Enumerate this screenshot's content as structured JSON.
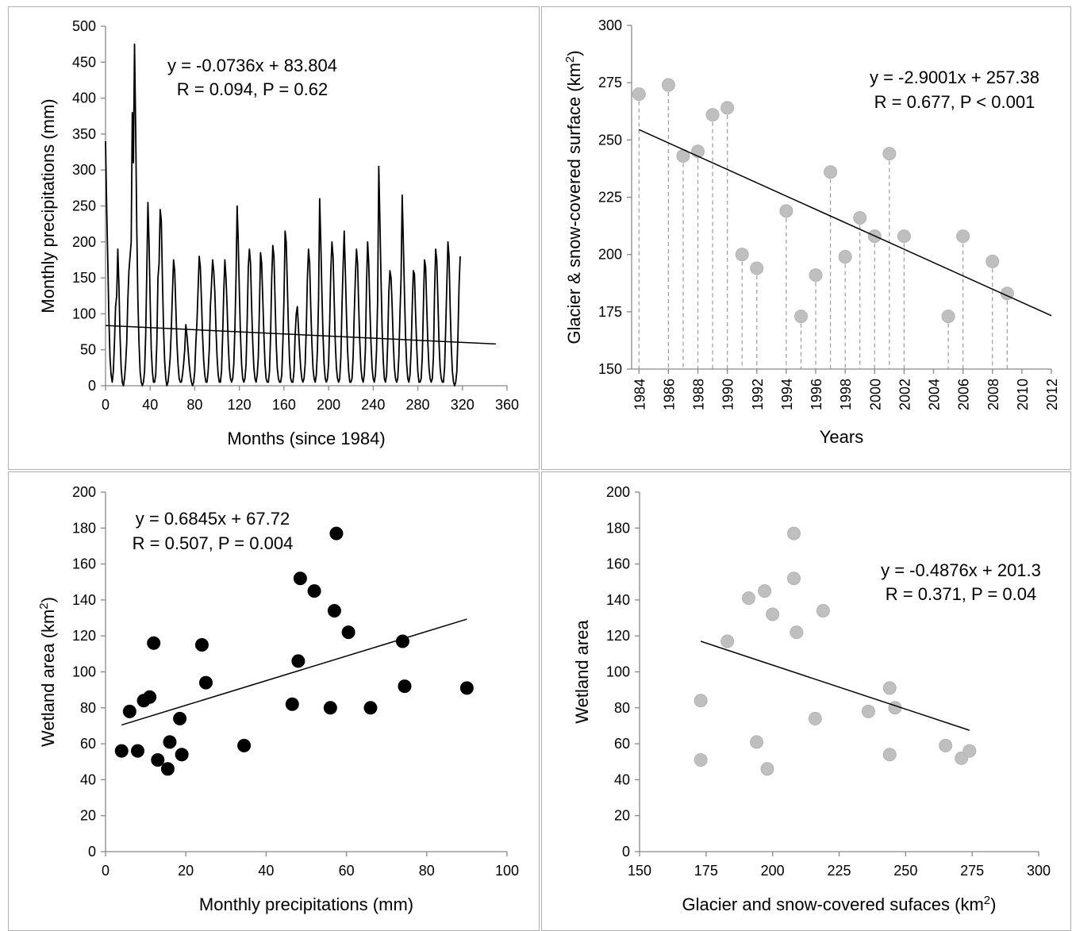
{
  "chart_data": [
    {
      "type": "line",
      "xlabel": "Months (since 1984)",
      "ylabel": "Monthly precipitations (mm)",
      "xlim": [
        0,
        360
      ],
      "ylim": [
        0,
        500
      ],
      "xticks": [
        "0",
        "40",
        "80",
        "120",
        "160",
        "200",
        "240",
        "280",
        "320",
        "360"
      ],
      "yticks": [
        "0",
        "50",
        "100",
        "150",
        "200",
        "250",
        "300",
        "350",
        "400",
        "450",
        "500"
      ],
      "annotation": [
        "y = -0.0736x + 83.804",
        "R = 0.094, P = 0.62"
      ],
      "trendline": {
        "slope": -0.0736,
        "intercept": 83.804,
        "x_range": [
          0,
          350
        ]
      },
      "color": "#000000",
      "series": [
        {
          "values": [
            340,
            250,
            175,
            95,
            40,
            15,
            5,
            20,
            60,
            110,
            125,
            190,
            140,
            70,
            25,
            5,
            0,
            10,
            30,
            60,
            120,
            160,
            180,
            200,
            380,
            310,
            475,
            360,
            220,
            120,
            60,
            20,
            5,
            0,
            5,
            20,
            70,
            160,
            255,
            200,
            120,
            50,
            20,
            5,
            5,
            15,
            60,
            150,
            170,
            245,
            230,
            150,
            80,
            35,
            10,
            0,
            5,
            20,
            40,
            80,
            130,
            175,
            160,
            110,
            60,
            30,
            10,
            5,
            5,
            15,
            30,
            50,
            85,
            70,
            50,
            30,
            15,
            5,
            0,
            5,
            20,
            60,
            90,
            135,
            180,
            165,
            120,
            70,
            35,
            15,
            5,
            5,
            20,
            50,
            110,
            140,
            175,
            160,
            130,
            80,
            40,
            15,
            5,
            5,
            20,
            70,
            130,
            175,
            150,
            110,
            60,
            25,
            10,
            5,
            10,
            30,
            80,
            150,
            250,
            200,
            130,
            70,
            30,
            10,
            5,
            10,
            30,
            90,
            165,
            190,
            170,
            110,
            60,
            25,
            10,
            5,
            15,
            40,
            110,
            185,
            170,
            120,
            70,
            30,
            10,
            5,
            5,
            20,
            70,
            150,
            195,
            180,
            120,
            60,
            25,
            10,
            5,
            5,
            15,
            60,
            120,
            215,
            200,
            140,
            80,
            35,
            10,
            5,
            5,
            20,
            70,
            100,
            110,
            80,
            50,
            25,
            10,
            5,
            10,
            30,
            80,
            150,
            190,
            170,
            110,
            60,
            25,
            10,
            5,
            15,
            50,
            120,
            260,
            200,
            130,
            70,
            30,
            10,
            5,
            10,
            30,
            90,
            160,
            200,
            180,
            120,
            60,
            25,
            10,
            5,
            10,
            40,
            110,
            165,
            215,
            160,
            100,
            50,
            20,
            5,
            5,
            10,
            40,
            100,
            150,
            190,
            170,
            110,
            60,
            25,
            10,
            5,
            15,
            50,
            140,
            200,
            170,
            110,
            60,
            25,
            10,
            5,
            15,
            50,
            120,
            305,
            230,
            150,
            80,
            35,
            10,
            5,
            15,
            60,
            130,
            160,
            150,
            110,
            60,
            25,
            10,
            5,
            10,
            40,
            100,
            150,
            265,
            200,
            130,
            70,
            30,
            10,
            5,
            15,
            50,
            110,
            160,
            155,
            100,
            55,
            20,
            5,
            5,
            10,
            40,
            110,
            175,
            165,
            110,
            60,
            25,
            10,
            5,
            10,
            40,
            130,
            190,
            175,
            120,
            60,
            25,
            10,
            5,
            5,
            25,
            80,
            140,
            200,
            180,
            110,
            55,
            20,
            5,
            0,
            5,
            20,
            70,
            140,
            180
          ]
        }
      ]
    },
    {
      "type": "scatter",
      "xlabel": "Years",
      "ylabel": "Glacier & snow-covered surface (km²)",
      "xlim": [
        1983.5,
        2012
      ],
      "ylim": [
        150,
        300
      ],
      "xticks": [
        "1984",
        "1986",
        "1988",
        "1990",
        "1992",
        "1994",
        "1996",
        "1998",
        "2000",
        "2002",
        "2004",
        "2006",
        "2008",
        "2010",
        "2012"
      ],
      "yticks": [
        "150",
        "175",
        "200",
        "225",
        "250",
        "275",
        "300"
      ],
      "annotation": [
        "y = -2.9001x + 257.38",
        "R = 0.677, P < 0.001"
      ],
      "trendline": {
        "points": [
          [
            1984,
            254.5
          ],
          [
            2012,
            173.3
          ]
        ]
      },
      "color": "#bfbfbf",
      "x": [
        1984,
        1986,
        1987,
        1988,
        1989,
        1990,
        1991,
        1992,
        1994,
        1995,
        1996,
        1997,
        1998,
        1999,
        2000,
        2001,
        2002,
        2005,
        2006,
        2008,
        2009
      ],
      "y": [
        270,
        274,
        243,
        245,
        261,
        264,
        200,
        194,
        219,
        173,
        191,
        236,
        199,
        216,
        208,
        244,
        208,
        173,
        208,
        197,
        183
      ]
    },
    {
      "type": "scatter",
      "xlabel": "Monthly precipitations (mm)",
      "ylabel": "Wetland area (km²)",
      "xlim": [
        0,
        100
      ],
      "ylim": [
        0,
        200
      ],
      "xticks": [
        "0",
        "20",
        "40",
        "60",
        "80",
        "100"
      ],
      "yticks": [
        "0",
        "20",
        "40",
        "60",
        "80",
        "100",
        "120",
        "140",
        "160",
        "180",
        "200"
      ],
      "annotation": [
        "y = 0.6845x + 67.72",
        "R = 0.507, P = 0.004"
      ],
      "trendline": {
        "slope": 0.6845,
        "intercept": 67.72,
        "x_range": [
          4,
          90
        ]
      },
      "color": "#000000",
      "x": [
        4,
        6,
        8,
        9.5,
        11,
        12,
        13,
        15.5,
        16,
        18.5,
        19,
        24,
        25,
        34.5,
        46.5,
        48,
        48.5,
        52,
        56,
        57,
        57.5,
        60.5,
        66,
        74,
        74.5,
        90
      ],
      "y": [
        56,
        78,
        56,
        84,
        86,
        116,
        51,
        46,
        61,
        74,
        54,
        115,
        94,
        59,
        82,
        106,
        152,
        145,
        80,
        134,
        177,
        122,
        80,
        117,
        92,
        91
      ]
    },
    {
      "type": "scatter",
      "xlabel": "Glacier and snow-covered sufaces (km²)",
      "ylabel": "Wetland area",
      "xlim": [
        150,
        300
      ],
      "ylim": [
        0,
        200
      ],
      "xticks": [
        "150",
        "175",
        "200",
        "225",
        "250",
        "275",
        "300"
      ],
      "yticks": [
        "0",
        "20",
        "40",
        "60",
        "80",
        "100",
        "120",
        "140",
        "160",
        "180",
        "200"
      ],
      "annotation": [
        "y = -0.4876x + 201.3",
        "R = 0.371, P = 0.04"
      ],
      "trendline": {
        "points": [
          [
            173,
            117
          ],
          [
            274,
            67.5
          ]
        ]
      },
      "color": "#bfbfbf",
      "x": [
        173,
        173,
        183,
        191,
        194,
        197,
        198,
        200,
        208,
        208,
        209,
        216,
        219,
        236,
        244,
        244,
        246,
        265,
        271,
        274
      ],
      "y": [
        84,
        51,
        117,
        141,
        61,
        145,
        46,
        132,
        177,
        152,
        122,
        74,
        134,
        78,
        91,
        54,
        80,
        59,
        52,
        56
      ]
    }
  ]
}
